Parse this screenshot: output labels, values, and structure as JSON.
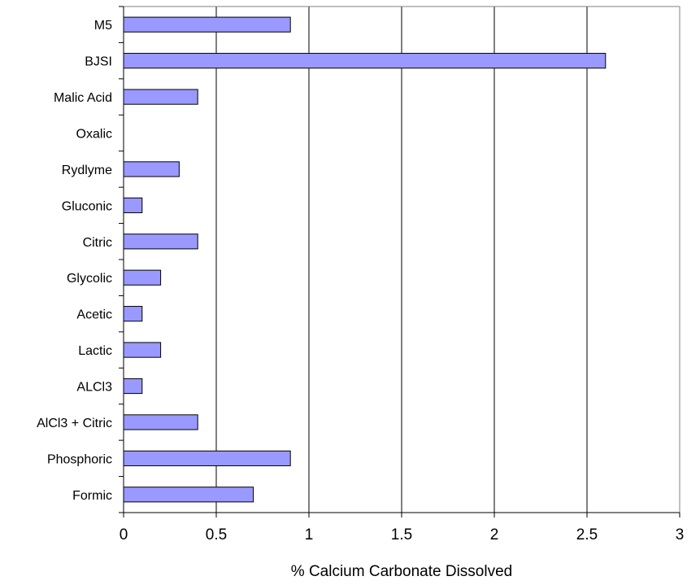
{
  "chart_data": {
    "type": "bar",
    "orientation": "horizontal",
    "title": "",
    "xlabel": "% Calcium Carbonate Dissolved",
    "ylabel": "",
    "xlim": [
      0,
      3
    ],
    "x_ticks": [
      "0",
      "0.5",
      "1",
      "1.5",
      "2",
      "2.5",
      "3"
    ],
    "grid": "vertical",
    "legend": "none",
    "bar_color": "#9999ff",
    "categories": [
      "M5",
      "BJSI",
      "Malic Acid",
      "Oxalic",
      "Rydlyme",
      "Gluconic",
      "Citric",
      "Glycolic",
      "Acetic",
      "Lactic",
      "ALCl3",
      "AlCl3 + Citric",
      "Phosphoric",
      "Formic"
    ],
    "values": [
      0.9,
      2.6,
      0.4,
      0,
      0.3,
      0.1,
      0.4,
      0.2,
      0.1,
      0.2,
      0.1,
      0.4,
      0.9,
      0.7
    ]
  }
}
